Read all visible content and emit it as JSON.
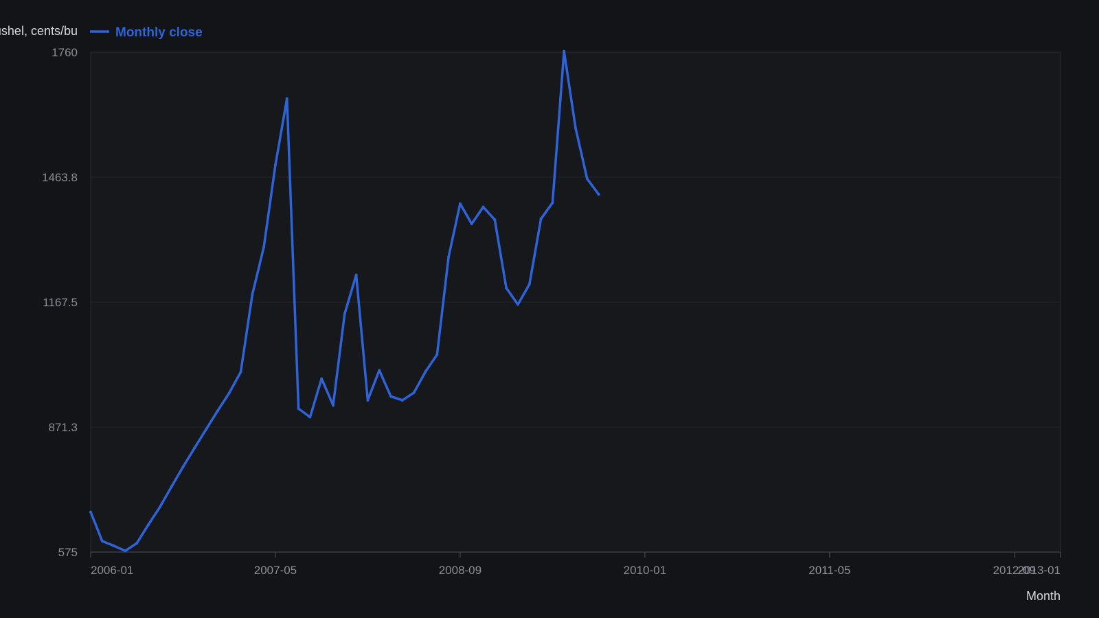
{
  "chart_data": {
    "type": "line",
    "ylabel": "Price per bushel, cents/bu",
    "xlabel": "Month",
    "ylim": [
      575,
      1760
    ],
    "yticks": [
      "575",
      "871.3",
      "1167.5",
      "1463.8",
      "1760"
    ],
    "xticks": [
      "2006-01",
      "2007-05",
      "2008-09",
      "2010-01",
      "2011-05",
      "2012-09",
      "2013-01"
    ],
    "grid": true,
    "legend_position": "top-left",
    "colors": {
      "background": "#121418",
      "plot": "#16181c",
      "line": "#2f63d8",
      "grid": "#23262c"
    },
    "series": [
      {
        "name": "Monthly close",
        "points": [
          [
            "2006-01",
            670
          ],
          [
            "2006-02",
            601
          ],
          [
            "2006-03",
            590
          ],
          [
            "2006-04",
            578
          ],
          [
            "2006-05",
            596
          ],
          [
            "2006-06",
            640
          ],
          [
            "2006-07",
            682
          ],
          [
            "2006-08",
            730
          ],
          [
            "2006-09",
            777
          ],
          [
            "2006-10",
            822
          ],
          [
            "2006-11",
            866
          ],
          [
            "2006-12",
            910
          ],
          [
            "2007-01",
            952
          ],
          [
            "2007-02",
            1002
          ],
          [
            "2007-03",
            1185
          ],
          [
            "2007-04",
            1298
          ],
          [
            "2007-05",
            1493
          ],
          [
            "2007-06",
            1650
          ],
          [
            "2007-07",
            915
          ],
          [
            "2007-08",
            895
          ],
          [
            "2007-09",
            986
          ],
          [
            "2007-10",
            923
          ],
          [
            "2007-11",
            1140
          ],
          [
            "2007-12",
            1232
          ],
          [
            "2008-01",
            935
          ],
          [
            "2008-02",
            1006
          ],
          [
            "2008-03",
            944
          ],
          [
            "2008-04",
            935
          ],
          [
            "2008-05",
            953
          ],
          [
            "2008-06",
            1003
          ],
          [
            "2008-07",
            1043
          ],
          [
            "2008-08",
            1275
          ],
          [
            "2008-09",
            1401
          ],
          [
            "2008-10",
            1353
          ],
          [
            "2008-11",
            1393
          ],
          [
            "2008-12",
            1363
          ],
          [
            "2009-01",
            1201
          ],
          [
            "2009-02",
            1162
          ],
          [
            "2009-03",
            1210
          ],
          [
            "2009-04",
            1365
          ],
          [
            "2009-05",
            1403
          ],
          [
            "2009-06",
            1762
          ],
          [
            "2009-07",
            1580
          ],
          [
            "2009-08",
            1460
          ],
          [
            "2009-09",
            1423
          ]
        ]
      }
    ]
  }
}
